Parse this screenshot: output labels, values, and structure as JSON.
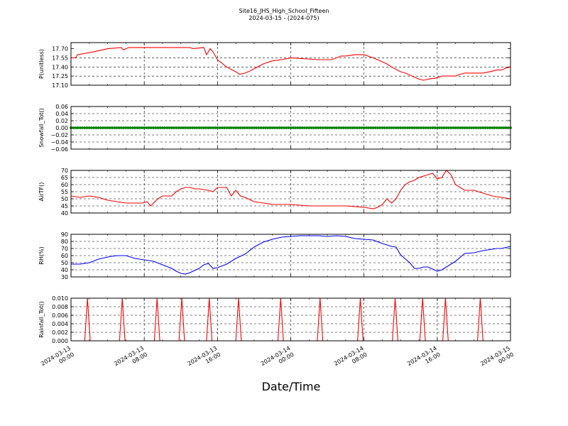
{
  "chart_data": {
    "title": "Site16_JHS_High_School_Fifteen",
    "subtitle": "2024-03-15 - (2024-075)",
    "xlabel": "Date/Time",
    "x_ticks": [
      [
        "2024-03-13",
        "00:00"
      ],
      [
        "2024-03-13",
        "08:00"
      ],
      [
        "2024-03-13",
        "16:00"
      ],
      [
        "2024-03-14",
        "00:00"
      ],
      [
        "2024-03-14",
        "08:00"
      ],
      [
        "2024-03-14",
        "16:00"
      ],
      [
        "2024-03-15",
        "00:00"
      ]
    ],
    "x_range_hours": [
      0,
      48
    ],
    "panels": [
      {
        "type": "line",
        "ylabel": "P(unitless)",
        "ylim": [
          17.1,
          17.8
        ],
        "yticks": [
          17.1,
          17.25,
          17.4,
          17.55,
          17.7
        ],
        "ytick_labels": [
          "17.10",
          "17.25",
          "17.40",
          "17.55",
          "17.70"
        ],
        "color": "#ff0000",
        "grid": true,
        "series": [
          {
            "x": [
              0,
              0.5,
              0.7,
              2.5,
              4,
              5.5,
              5.7,
              6.3,
              6.7,
              13,
              13.3,
              14.5,
              14.8,
              15.2,
              15.5,
              16,
              17,
              18,
              18.4,
              19,
              19.5,
              20,
              21,
              22,
              23,
              24,
              27,
              27.5,
              28,
              28.5,
              29,
              29.5,
              30,
              31,
              32,
              33,
              34.5,
              35,
              36,
              36.5,
              38,
              38.5,
              39,
              40,
              40.5,
              41,
              42,
              42.5,
              43,
              45,
              46,
              46.5,
              47,
              47.5,
              48
            ],
            "y": [
              17.55,
              17.55,
              17.6,
              17.65,
              17.7,
              17.72,
              17.68,
              17.72,
              17.72,
              17.72,
              17.7,
              17.72,
              17.6,
              17.7,
              17.65,
              17.52,
              17.4,
              17.32,
              17.28,
              17.3,
              17.33,
              17.37,
              17.45,
              17.5,
              17.52,
              17.55,
              17.52,
              17.52,
              17.52,
              17.52,
              17.55,
              17.58,
              17.58,
              17.6,
              17.6,
              17.55,
              17.45,
              17.4,
              17.32,
              17.3,
              17.2,
              17.18,
              17.2,
              17.22,
              17.25,
              17.25,
              17.25,
              17.28,
              17.3,
              17.3,
              17.33,
              17.35,
              17.35,
              17.38,
              17.4
            ]
          }
        ]
      },
      {
        "type": "scatter",
        "ylabel": "Snowfall_Tot()",
        "ylim": [
          -0.06,
          0.06
        ],
        "yticks": [
          -0.06,
          -0.04,
          -0.02,
          0.0,
          0.02,
          0.04,
          0.06
        ],
        "ytick_labels": [
          "−0.06",
          "−0.04",
          "−0.02",
          "0.00",
          "0.02",
          "0.04",
          "0.06"
        ],
        "color": "#008000",
        "grid": true,
        "series": [
          {
            "description_constant": 0.0,
            "x_step_hours": 0.25,
            "x_start": 0,
            "x_end": 48
          }
        ]
      },
      {
        "type": "line",
        "ylabel": "AirTF()",
        "ylim": [
          40,
          70
        ],
        "yticks": [
          40,
          45,
          50,
          55,
          60,
          65,
          70
        ],
        "ytick_labels": [
          "40",
          "45",
          "50",
          "55",
          "60",
          "65",
          "70"
        ],
        "color": "#ff0000",
        "grid": true,
        "series": [
          {
            "x": [
              0,
              1,
              2,
              3,
              4,
              5,
              6,
              7,
              7.8,
              8.3,
              8.7,
              9,
              9.5,
              10,
              11,
              11.5,
              12,
              12.5,
              13,
              13.5,
              14,
              15,
              15.5,
              16,
              17,
              17.5,
              18,
              18.5,
              19,
              20,
              21,
              22,
              24,
              26,
              28,
              30,
              32,
              33,
              33.5,
              34,
              34.5,
              35,
              35.5,
              36,
              36.5,
              37,
              37.5,
              38,
              38.5,
              39,
              39.5,
              40,
              40.5,
              41,
              41.5,
              42,
              43,
              44,
              45,
              46,
              47,
              48
            ],
            "y": [
              52,
              51,
              52,
              51,
              49,
              48,
              47,
              47,
              47,
              48,
              45,
              47,
              50,
              52,
              52,
              55,
              57,
              58,
              58,
              57,
              57,
              56,
              55,
              58,
              58,
              52,
              56,
              52,
              51,
              48,
              47,
              46,
              46,
              45,
              45,
              45,
              44,
              43,
              44,
              46,
              50,
              47,
              50,
              56,
              60,
              62,
              63,
              65,
              66,
              67,
              68,
              64,
              65,
              70,
              67,
              60,
              56,
              56,
              54,
              52,
              51,
              50
            ]
          }
        ]
      },
      {
        "type": "line",
        "ylabel": "RH(%)",
        "ylim": [
          30,
          90
        ],
        "yticks": [
          30,
          40,
          50,
          60,
          70,
          80,
          90
        ],
        "ytick_labels": [
          "30",
          "40",
          "50",
          "60",
          "70",
          "80",
          "90"
        ],
        "color": "#0000ff",
        "grid": true,
        "series": [
          {
            "x": [
              0,
              1,
              2,
              3,
              4,
              5,
              6,
              7,
              8,
              9,
              10,
              11,
              11.5,
              12,
              12.5,
              13,
              14,
              14.5,
              15,
              15.5,
              16,
              17,
              18,
              19,
              20,
              21,
              22,
              23,
              24,
              25,
              26,
              27,
              28,
              29,
              30,
              31,
              32,
              33,
              34,
              35,
              35.5,
              36,
              37,
              37.5,
              38,
              38.5,
              39,
              40,
              40.5,
              41,
              42,
              43,
              44,
              45,
              46,
              46.5,
              47,
              48
            ],
            "y": [
              48,
              48,
              50,
              55,
              58,
              60,
              60,
              56,
              54,
              52,
              47,
              42,
              38,
              35,
              34,
              36,
              42,
              47,
              49,
              42,
              43,
              48,
              56,
              62,
              72,
              79,
              83,
              86,
              87,
              88,
              88,
              88,
              87,
              88,
              87,
              84,
              83,
              82,
              77,
              73,
              72,
              61,
              50,
              42,
              42,
              44,
              44,
              38,
              40,
              44,
              52,
              63,
              64,
              67,
              69,
              70,
              70,
              73
            ]
          }
        ]
      },
      {
        "type": "line",
        "ylabel": "Rainfall_Tot()",
        "ylim": [
          0,
          0.01
        ],
        "yticks": [
          0,
          0.002,
          0.004,
          0.006,
          0.008,
          0.01
        ],
        "ytick_labels": [
          "0.000",
          "0.002",
          "0.004",
          "0.006",
          "0.008",
          "0.010"
        ],
        "color": "#ff0000",
        "grid": true,
        "series": [
          {
            "spike_x": [
              1.8,
              5.6,
              9.4,
              12.1,
              15.1,
              18.3,
              22.9,
              27.2,
              31.6,
              35.4,
              38.4,
              40.9,
              44.7
            ],
            "spike_value": 0.01,
            "baseline": 0.0
          }
        ]
      }
    ]
  }
}
